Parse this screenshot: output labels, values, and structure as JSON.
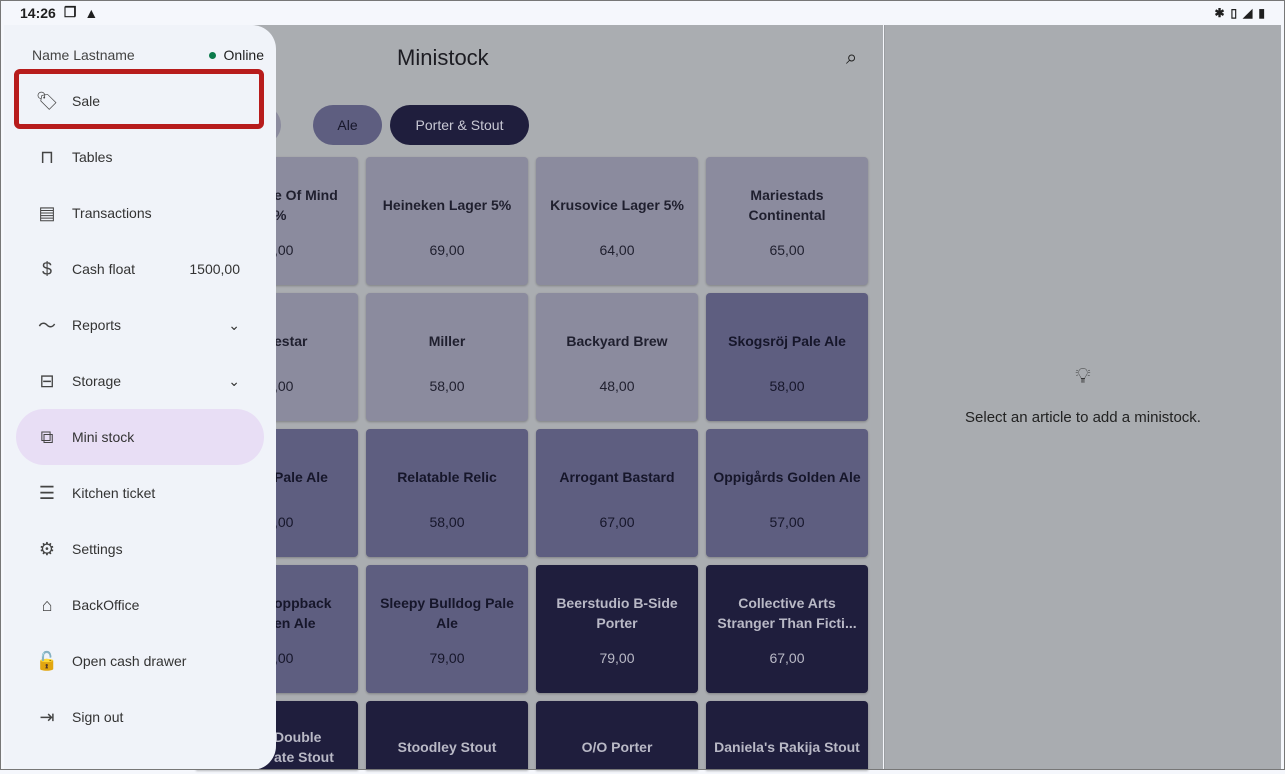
{
  "status_bar": {
    "time": "14:26",
    "left_icons": [
      "screen-icon",
      "warning-icon"
    ],
    "right_icons": [
      "bluetooth-icon",
      "vibrate-icon",
      "signal-icon",
      "battery-icon"
    ]
  },
  "header": {
    "title": "Ministock"
  },
  "chips": [
    {
      "label": "r"
    },
    {
      "label": "Ale"
    },
    {
      "label": "Porter & Stout"
    }
  ],
  "tiles": [
    [
      {
        "name": "e Of Mind\n%",
        "price": ",00",
        "shade": "light"
      },
      {
        "name": "Heineken Lager 5%",
        "price": "69,00",
        "shade": "light"
      },
      {
        "name": "Krusovice Lager 5%",
        "price": "64,00",
        "shade": "light"
      },
      {
        "name": "Mariestads\nContinental",
        "price": "65,00",
        "shade": "light"
      }
    ],
    [
      {
        "name": "estar",
        "price": ",00",
        "shade": "light"
      },
      {
        "name": "Miller",
        "price": "58,00",
        "shade": "light"
      },
      {
        "name": "Backyard Brew",
        "price": "48,00",
        "shade": "light"
      },
      {
        "name": "Skogsröj Pale Ale",
        "price": "58,00",
        "shade": "medium"
      }
    ],
    [
      {
        "name": "Pale Ale",
        "price": ",00",
        "shade": "medium"
      },
      {
        "name": "Relatable Relic",
        "price": "58,00",
        "shade": "medium"
      },
      {
        "name": "Arrogant Bastard",
        "price": "67,00",
        "shade": "medium"
      },
      {
        "name": "Oppigårds Golden Ale",
        "price": "57,00",
        "shade": "medium"
      }
    ],
    [
      {
        "name": "oppback\nen Ale",
        "price": ",00",
        "shade": "medium"
      },
      {
        "name": "Sleepy Bulldog Pale\nAle",
        "price": "79,00",
        "shade": "medium"
      },
      {
        "name": "Beerstudio B-Side\nPorter",
        "price": "79,00",
        "shade": "dark"
      },
      {
        "name": "Collective Arts\nStranger Than Ficti...",
        "price": "67,00",
        "shade": "dark"
      }
    ],
    [
      {
        "name": "Double\nate Stout",
        "price": "",
        "shade": "dark"
      },
      {
        "name": "Stoodley Stout",
        "price": "",
        "shade": "dark"
      },
      {
        "name": "O/O Porter",
        "price": "",
        "shade": "dark"
      },
      {
        "name": "Daniela's Rakija Stout",
        "price": "",
        "shade": "dark"
      }
    ]
  ],
  "drawer": {
    "user": "Name Lastname",
    "status": "Online",
    "items": [
      {
        "label": "Sale",
        "icon": "tag-icon",
        "glyph": "🏷"
      },
      {
        "label": "Tables",
        "icon": "table-icon",
        "glyph": "⊓"
      },
      {
        "label": "Transactions",
        "icon": "receipt-icon",
        "glyph": "▤"
      },
      {
        "label": "Cash float",
        "icon": "dollar-icon",
        "glyph": "$",
        "value": "1500,00"
      },
      {
        "label": "Reports",
        "icon": "trending-icon",
        "glyph": "〜",
        "chevron": "⌄"
      },
      {
        "label": "Storage",
        "icon": "archive-icon",
        "glyph": "⊟",
        "chevron": "⌄"
      },
      {
        "label": "Mini stock",
        "icon": "mini-stock-icon",
        "glyph": "⧉"
      },
      {
        "label": "Kitchen ticket",
        "icon": "ticket-icon",
        "glyph": "☰"
      },
      {
        "label": "Settings",
        "icon": "gear-icon",
        "glyph": "⚙"
      },
      {
        "label": "BackOffice",
        "icon": "store-icon",
        "glyph": "⌂"
      },
      {
        "label": "Open cash drawer",
        "icon": "unlock-icon",
        "glyph": "🔓"
      },
      {
        "label": "Sign out",
        "icon": "logout-icon",
        "glyph": "⇥"
      }
    ]
  },
  "detail": {
    "message": "Select an article to add a ministock."
  },
  "colors": {
    "highlight": "#b71c1c",
    "active": "#e8def5",
    "online": "#0b7a4b"
  }
}
